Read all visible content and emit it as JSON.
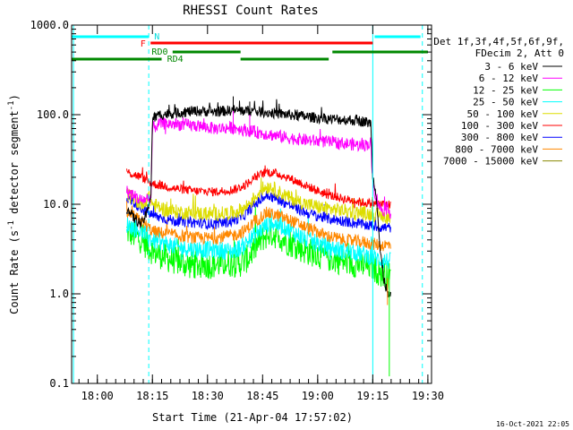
{
  "chart_data": {
    "type": "line",
    "title": "RHESSI Count Rates",
    "xlabel": "Start Time (21-Apr-04 17:57:02)",
    "ylabel_main": "Count Rate (s",
    "ylabel_exp1": "-1",
    "ylabel_mid": " detector segment",
    "ylabel_exp2": "-1",
    "ylabel_end": ")",
    "yscale": "log",
    "ylim": [
      0.1,
      1000
    ],
    "xlim_minutes": [
      -4,
      94
    ],
    "x_ticks": [
      {
        "m": 3,
        "label": "18:00"
      },
      {
        "m": 18,
        "label": "18:15"
      },
      {
        "m": 33,
        "label": "18:30"
      },
      {
        "m": 48,
        "label": "18:45"
      },
      {
        "m": 63,
        "label": "19:00"
      },
      {
        "m": 78,
        "label": "19:15"
      },
      {
        "m": 93,
        "label": "19:30"
      }
    ],
    "y_ticks": [
      {
        "v": 1000,
        "label": "1000.0"
      },
      {
        "v": 100,
        "label": "100.0"
      },
      {
        "v": 10,
        "label": "10.0"
      },
      {
        "v": 1,
        "label": "1.0"
      },
      {
        "v": 0.1,
        "label": "0.1"
      }
    ],
    "legend_header": [
      "Det 1f,3f,4f,5f,6f,9f,",
      "FDecim 2, Att 0"
    ],
    "legend_position": "top-right",
    "series": [
      {
        "name": "3 - 6 keV",
        "color": "#000000"
      },
      {
        "name": "6 - 12 keV",
        "color": "#ff00ff"
      },
      {
        "name": "12 - 25 keV",
        "color": "#00ff00"
      },
      {
        "name": "25 - 50 keV",
        "color": "#00ffff"
      },
      {
        "name": "50 - 100 keV",
        "color": "#dddd00"
      },
      {
        "name": "100 - 300 keV",
        "color": "#ff0000"
      },
      {
        "name": "300 - 800 keV",
        "color": "#0000ff"
      },
      {
        "name": "800 - 7000 keV",
        "color": "#ff8800"
      },
      {
        "name": "7000 - 15000 keV",
        "color": "#888800"
      }
    ],
    "profiles": [
      {
        "series": 0,
        "points": [
          [
            11,
            9
          ],
          [
            13,
            7
          ],
          [
            15,
            6
          ],
          [
            16.5,
            8
          ],
          [
            17.6,
            13
          ],
          [
            18,
            90
          ],
          [
            20,
            100
          ],
          [
            25,
            105
          ],
          [
            30,
            110
          ],
          [
            35,
            108
          ],
          [
            40,
            112
          ],
          [
            45,
            110
          ],
          [
            50,
            105
          ],
          [
            55,
            100
          ],
          [
            60,
            95
          ],
          [
            65,
            90
          ],
          [
            70,
            88
          ],
          [
            75,
            85
          ],
          [
            77.5,
            80
          ],
          [
            78,
            20
          ],
          [
            79,
            13
          ],
          [
            80,
            3
          ],
          [
            81,
            1.5
          ],
          [
            82,
            1
          ],
          [
            83,
            0.9
          ]
        ]
      },
      {
        "series": 1,
        "points": [
          [
            11,
            14
          ],
          [
            15,
            11
          ],
          [
            17.6,
            12
          ],
          [
            18,
            70
          ],
          [
            20,
            80
          ],
          [
            25,
            78
          ],
          [
            30,
            75
          ],
          [
            35,
            70
          ],
          [
            40,
            72
          ],
          [
            45,
            65
          ],
          [
            50,
            60
          ],
          [
            55,
            55
          ],
          [
            60,
            52
          ],
          [
            65,
            50
          ],
          [
            70,
            48
          ],
          [
            75,
            45
          ],
          [
            77.5,
            48
          ],
          [
            78,
            16
          ],
          [
            80,
            9
          ],
          [
            83,
            8
          ]
        ]
      },
      {
        "series": 2,
        "points": [
          [
            11,
            5
          ],
          [
            13,
            4.5
          ],
          [
            15,
            4
          ],
          [
            18,
            3
          ],
          [
            22,
            2.5
          ],
          [
            28,
            2.1
          ],
          [
            34,
            2.1
          ],
          [
            38,
            2.2
          ],
          [
            42,
            2.2
          ],
          [
            44,
            2.5
          ],
          [
            46,
            3.3
          ],
          [
            48,
            4.2
          ],
          [
            50,
            4.8
          ],
          [
            52,
            4.5
          ],
          [
            55,
            3.8
          ],
          [
            60,
            3
          ],
          [
            65,
            2.6
          ],
          [
            70,
            2.3
          ],
          [
            75,
            2.1
          ],
          [
            78,
            2
          ],
          [
            80,
            1.7
          ],
          [
            83,
            1.5
          ]
        ]
      },
      {
        "series": 3,
        "points": [
          [
            11,
            6
          ],
          [
            15,
            5
          ],
          [
            18,
            4
          ],
          [
            25,
            3.3
          ],
          [
            34,
            3.1
          ],
          [
            40,
            3
          ],
          [
            43,
            3.5
          ],
          [
            47,
            5
          ],
          [
            50,
            6.2
          ],
          [
            53,
            5.8
          ],
          [
            56,
            5
          ],
          [
            60,
            4
          ],
          [
            65,
            3.4
          ],
          [
            70,
            3
          ],
          [
            75,
            2.8
          ],
          [
            80,
            2.4
          ],
          [
            83,
            2.3
          ]
        ]
      },
      {
        "series": 4,
        "points": [
          [
            11,
            13
          ],
          [
            15,
            10
          ],
          [
            17,
            12
          ],
          [
            18,
            10
          ],
          [
            22,
            8.5
          ],
          [
            28,
            8
          ],
          [
            34,
            7.8
          ],
          [
            40,
            8
          ],
          [
            43,
            9
          ],
          [
            46,
            12
          ],
          [
            48,
            15
          ],
          [
            50,
            16
          ],
          [
            52,
            14
          ],
          [
            55,
            12
          ],
          [
            60,
            10
          ],
          [
            65,
            9
          ],
          [
            70,
            8.5
          ],
          [
            75,
            8
          ],
          [
            80,
            7.5
          ],
          [
            83,
            7
          ]
        ]
      },
      {
        "series": 5,
        "points": [
          [
            11,
            23
          ],
          [
            15,
            20
          ],
          [
            18,
            17
          ],
          [
            24,
            15
          ],
          [
            30,
            14
          ],
          [
            35,
            13.8
          ],
          [
            40,
            14.5
          ],
          [
            43,
            16
          ],
          [
            46,
            20
          ],
          [
            49,
            23
          ],
          [
            52,
            22
          ],
          [
            56,
            19
          ],
          [
            60,
            16
          ],
          [
            65,
            13
          ],
          [
            70,
            11.5
          ],
          [
            75,
            10.5
          ],
          [
            80,
            10
          ],
          [
            83,
            10
          ]
        ]
      },
      {
        "series": 6,
        "points": [
          [
            11,
            12
          ],
          [
            15,
            9
          ],
          [
            18,
            7.5
          ],
          [
            24,
            6.5
          ],
          [
            30,
            6.2
          ],
          [
            35,
            6
          ],
          [
            40,
            6.5
          ],
          [
            43,
            7.5
          ],
          [
            46,
            10
          ],
          [
            49,
            12.5
          ],
          [
            52,
            11.5
          ],
          [
            56,
            9.5
          ],
          [
            60,
            8
          ],
          [
            65,
            7
          ],
          [
            70,
            6.5
          ],
          [
            75,
            6
          ],
          [
            80,
            5.5
          ],
          [
            83,
            5.5
          ]
        ]
      },
      {
        "series": 7,
        "points": [
          [
            11,
            8
          ],
          [
            15,
            6.5
          ],
          [
            18,
            5
          ],
          [
            24,
            4.5
          ],
          [
            30,
            4.2
          ],
          [
            35,
            4.2
          ],
          [
            40,
            4.5
          ],
          [
            43,
            5
          ],
          [
            46,
            6.5
          ],
          [
            49,
            8
          ],
          [
            52,
            7.5
          ],
          [
            56,
            6.5
          ],
          [
            60,
            5.5
          ],
          [
            65,
            4.5
          ],
          [
            70,
            4
          ],
          [
            75,
            3.8
          ],
          [
            80,
            3.5
          ],
          [
            83,
            3.5
          ]
        ]
      }
    ],
    "annotations": {
      "N_label": "N",
      "F_label": "F",
      "RD0_label": "RD0",
      "RD4_label": "RD4",
      "N_bars": [
        [
          -4,
          17
        ],
        [
          78.5,
          91
        ]
      ],
      "F_bar": [
        17.5,
        78
      ],
      "RD0_bars": [
        [
          23.5,
          42
        ],
        [
          67,
          93
        ]
      ],
      "RD4_bars": [
        [
          -4,
          20.5
        ],
        [
          42,
          66
        ]
      ],
      "vlines_cyan_solid": [
        -3.5,
        78
      ],
      "vlines_cyan_dash": [
        17,
        91.5
      ]
    },
    "timestamp": "16-Oct-2021 22:05"
  }
}
